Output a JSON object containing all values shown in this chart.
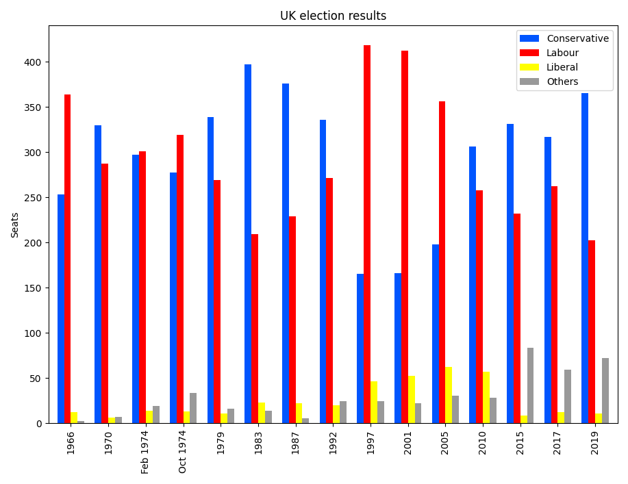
{
  "title": "UK election results",
  "ylabel": "Seats",
  "categories": [
    "1966",
    "1970",
    "Feb 1974",
    "Oct 1974",
    "1979",
    "1983",
    "1987",
    "1992",
    "1997",
    "2001",
    "2005",
    "2010",
    "2015",
    "2017",
    "2019"
  ],
  "conservative": [
    253,
    330,
    297,
    277,
    339,
    397,
    376,
    336,
    165,
    166,
    198,
    306,
    331,
    317,
    365
  ],
  "labour": [
    364,
    287,
    301,
    319,
    269,
    209,
    229,
    271,
    418,
    412,
    356,
    258,
    232,
    262,
    202
  ],
  "liberal": [
    12,
    6,
    14,
    13,
    11,
    23,
    22,
    20,
    46,
    52,
    62,
    57,
    8,
    12,
    11
  ],
  "others": [
    2,
    7,
    19,
    33,
    16,
    14,
    5,
    24,
    24,
    22,
    30,
    28,
    83,
    59,
    72
  ],
  "colors": {
    "conservative": "#0055ff",
    "labour": "#ff0000",
    "liberal": "#ffff00",
    "others": "#999999"
  },
  "legend_labels": [
    "Conservative",
    "Labour",
    "Liberal",
    "Others"
  ],
  "figsize": [
    9.17,
    7.07
  ],
  "dpi": 100,
  "bar_width": 0.18,
  "ylim": [
    0,
    440
  ]
}
